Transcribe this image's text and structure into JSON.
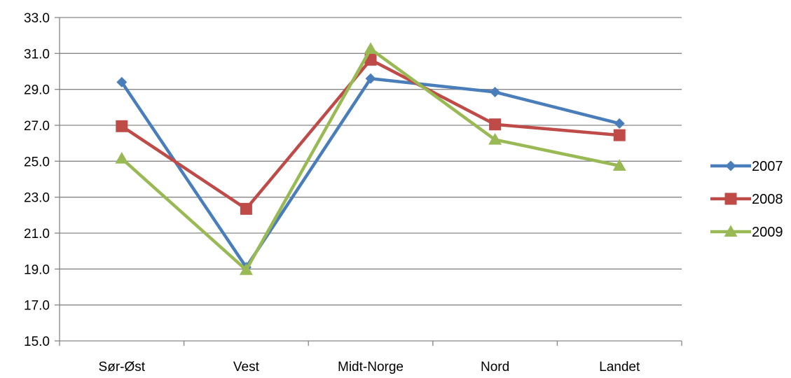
{
  "chart_data": {
    "type": "line",
    "categories": [
      "Sør-Øst",
      "Vest",
      "Midt-Norge",
      "Nord",
      "Landet"
    ],
    "series": [
      {
        "name": "2007",
        "color": "#4a7ebb",
        "marker": "diamond",
        "values": [
          29.4,
          19.1,
          29.6,
          28.85,
          27.1
        ]
      },
      {
        "name": "2008",
        "color": "#be4b48",
        "marker": "square",
        "values": [
          26.95,
          22.35,
          30.65,
          27.05,
          26.45
        ]
      },
      {
        "name": "2009",
        "color": "#98b954",
        "marker": "triangle",
        "values": [
          25.15,
          18.95,
          31.25,
          26.2,
          24.75
        ]
      }
    ],
    "ylim": [
      15.0,
      33.0
    ],
    "yticks": [
      "15.0",
      "17.0",
      "19.0",
      "21.0",
      "23.0",
      "25.0",
      "27.0",
      "29.0",
      "31.0",
      "33.0"
    ],
    "grid": true,
    "legend_position": "right"
  }
}
